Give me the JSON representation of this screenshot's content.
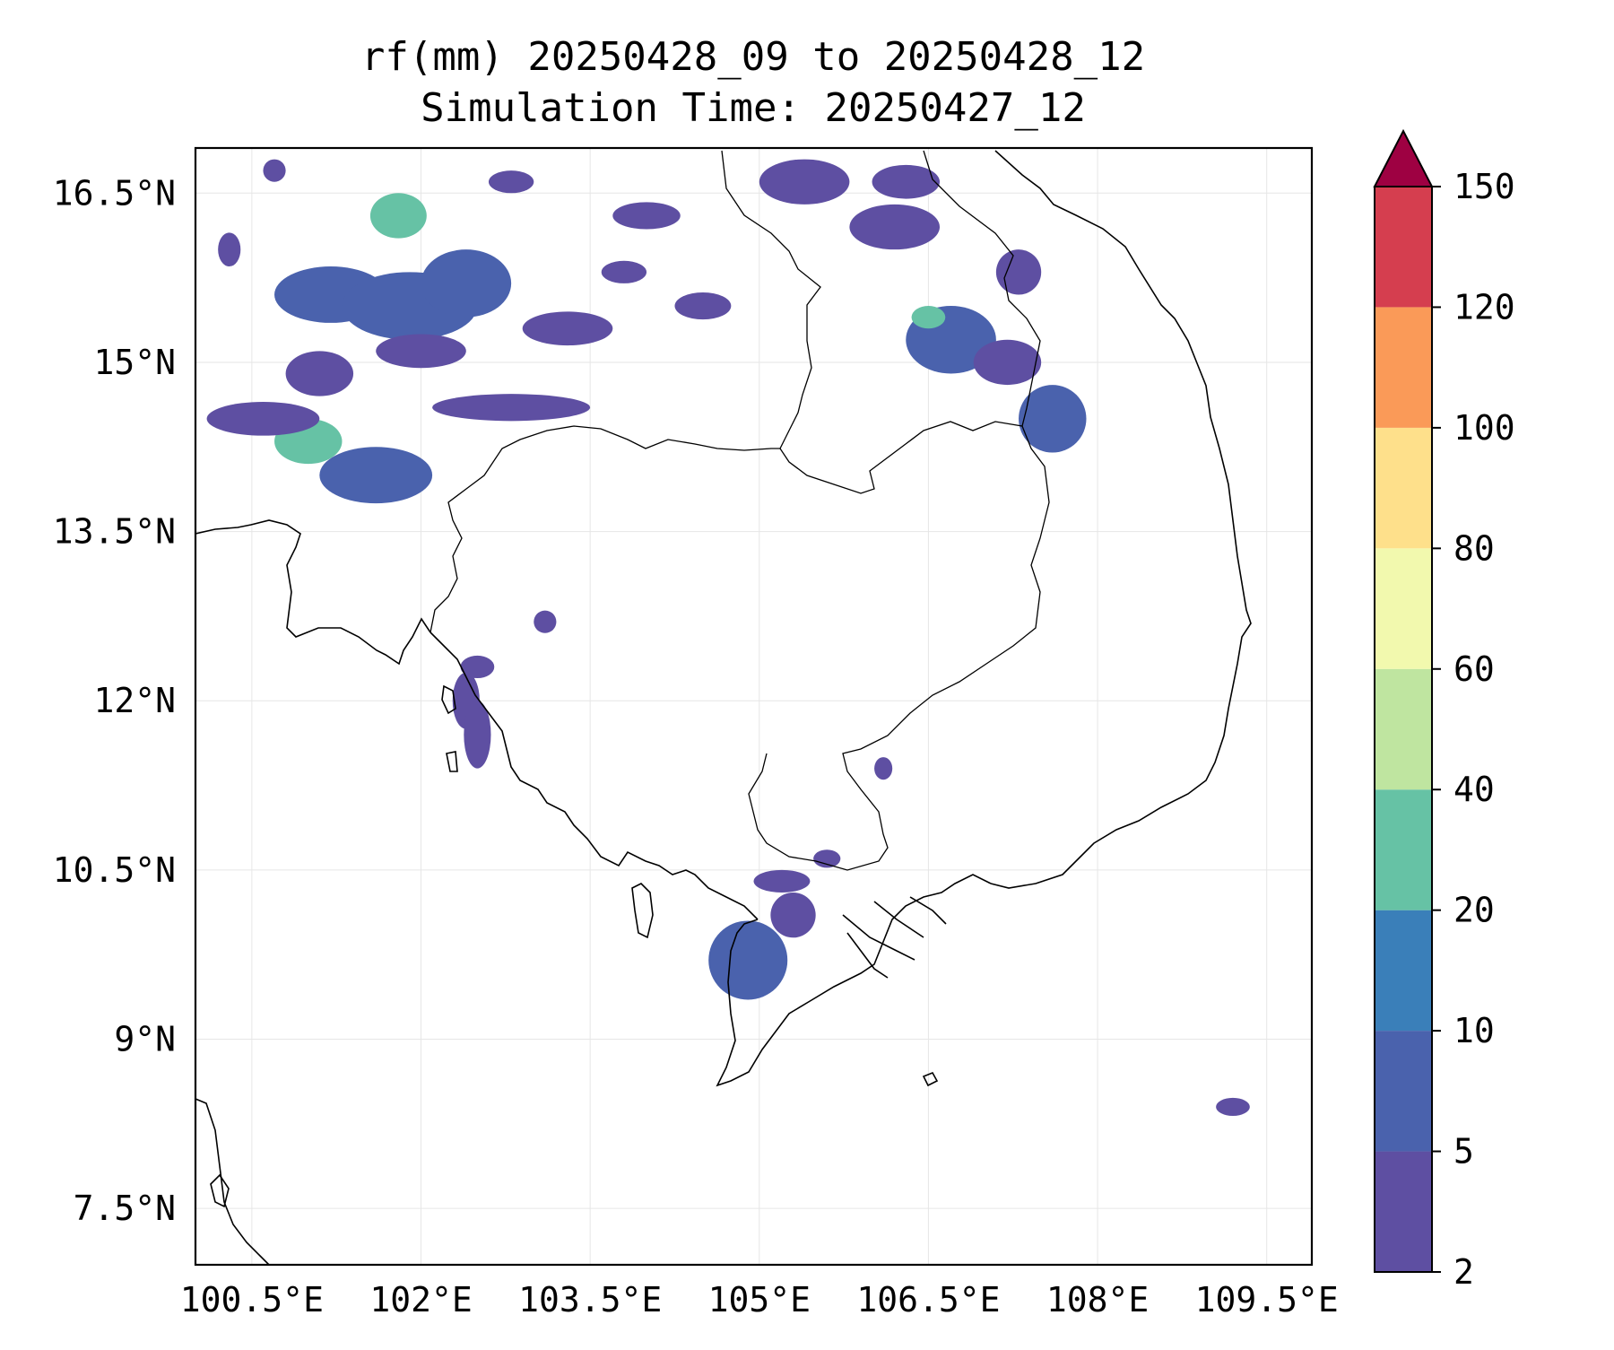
{
  "title": {
    "line1": "rf(mm) 20250428_09 to 20250428_12",
    "line2": "Simulation Time: 20250427_12"
  },
  "map": {
    "lon_range": [
      100.0,
      109.9
    ],
    "lat_range": [
      7.0,
      16.9
    ],
    "lon_ticks": [
      {
        "value": 100.5,
        "label": "100.5°E"
      },
      {
        "value": 102.0,
        "label": "102°E"
      },
      {
        "value": 103.5,
        "label": "103.5°E"
      },
      {
        "value": 105.0,
        "label": "105°E"
      },
      {
        "value": 106.5,
        "label": "106.5°E"
      },
      {
        "value": 108.0,
        "label": "108°E"
      },
      {
        "value": 109.5,
        "label": "109.5°E"
      }
    ],
    "lat_ticks": [
      {
        "value": 16.5,
        "label": "16.5°N"
      },
      {
        "value": 15.0,
        "label": "15°N"
      },
      {
        "value": 13.5,
        "label": "13.5°N"
      },
      {
        "value": 12.0,
        "label": "12°N"
      },
      {
        "value": 10.5,
        "label": "10.5°N"
      },
      {
        "value": 9.0,
        "label": "9°N"
      },
      {
        "value": 7.5,
        "label": "7.5°N"
      }
    ],
    "grid": true
  },
  "colorbar": {
    "extend": "max",
    "extend_color": "#9e0142",
    "levels": [
      {
        "label": "2",
        "color": "#5e4fa2"
      },
      {
        "label": "5",
        "color": "#4a62ad"
      },
      {
        "label": "10",
        "color": "#3a7fb9"
      },
      {
        "label": "20",
        "color": "#66c2a5"
      },
      {
        "label": "40",
        "color": "#bfe5a0"
      },
      {
        "label": "60",
        "color": "#f2f9ae"
      },
      {
        "label": "80",
        "color": "#fee08b"
      },
      {
        "label": "100",
        "color": "#fa9a58"
      },
      {
        "label": "120",
        "color": "#d53e4f"
      },
      {
        "label": "150",
        "color": ""
      }
    ]
  },
  "rain_cells": [
    {
      "lon": 101.2,
      "lat": 15.6,
      "rx": 0.5,
      "ry": 0.25,
      "level": 1
    },
    {
      "lon": 101.9,
      "lat": 15.5,
      "rx": 0.6,
      "ry": 0.3,
      "level": 1
    },
    {
      "lon": 102.4,
      "lat": 15.7,
      "rx": 0.4,
      "ry": 0.3,
      "level": 1
    },
    {
      "lon": 101.8,
      "lat": 16.3,
      "rx": 0.25,
      "ry": 0.2,
      "level": 3
    },
    {
      "lon": 101.1,
      "lat": 14.9,
      "rx": 0.3,
      "ry": 0.2,
      "level": 0
    },
    {
      "lon": 101.0,
      "lat": 14.3,
      "rx": 0.3,
      "ry": 0.2,
      "level": 3
    },
    {
      "lon": 101.6,
      "lat": 14.0,
      "rx": 0.5,
      "ry": 0.25,
      "level": 1
    },
    {
      "lon": 100.6,
      "lat": 14.5,
      "rx": 0.5,
      "ry": 0.15,
      "level": 0
    },
    {
      "lon": 102.8,
      "lat": 14.6,
      "rx": 0.7,
      "ry": 0.12,
      "level": 0
    },
    {
      "lon": 102.0,
      "lat": 15.1,
      "rx": 0.4,
      "ry": 0.15,
      "level": 0
    },
    {
      "lon": 103.3,
      "lat": 15.3,
      "rx": 0.4,
      "ry": 0.15,
      "level": 0
    },
    {
      "lon": 104.5,
      "lat": 15.5,
      "rx": 0.25,
      "ry": 0.12,
      "level": 0
    },
    {
      "lon": 104.0,
      "lat": 16.3,
      "rx": 0.3,
      "ry": 0.12,
      "level": 0
    },
    {
      "lon": 105.4,
      "lat": 16.6,
      "rx": 0.4,
      "ry": 0.2,
      "level": 0
    },
    {
      "lon": 106.2,
      "lat": 16.2,
      "rx": 0.4,
      "ry": 0.2,
      "level": 0
    },
    {
      "lon": 106.7,
      "lat": 15.2,
      "rx": 0.4,
      "ry": 0.3,
      "level": 1
    },
    {
      "lon": 106.5,
      "lat": 15.4,
      "rx": 0.15,
      "ry": 0.1,
      "level": 3
    },
    {
      "lon": 107.2,
      "lat": 15.0,
      "rx": 0.3,
      "ry": 0.2,
      "level": 0
    },
    {
      "lon": 107.6,
      "lat": 14.5,
      "rx": 0.3,
      "ry": 0.3,
      "level": 1
    },
    {
      "lon": 106.3,
      "lat": 16.6,
      "rx": 0.3,
      "ry": 0.15,
      "level": 0
    },
    {
      "lon": 107.3,
      "lat": 15.8,
      "rx": 0.2,
      "ry": 0.2,
      "level": 0
    },
    {
      "lon": 102.4,
      "lat": 12.0,
      "rx": 0.12,
      "ry": 0.25,
      "level": 0
    },
    {
      "lon": 102.5,
      "lat": 11.7,
      "rx": 0.12,
      "ry": 0.3,
      "level": 0
    },
    {
      "lon": 102.5,
      "lat": 12.3,
      "rx": 0.15,
      "ry": 0.1,
      "level": 0
    },
    {
      "lon": 103.1,
      "lat": 12.7,
      "rx": 0.1,
      "ry": 0.1,
      "level": 0
    },
    {
      "lon": 104.9,
      "lat": 9.7,
      "rx": 0.35,
      "ry": 0.35,
      "level": 1
    },
    {
      "lon": 105.3,
      "lat": 10.1,
      "rx": 0.2,
      "ry": 0.2,
      "level": 0
    },
    {
      "lon": 105.2,
      "lat": 10.4,
      "rx": 0.25,
      "ry": 0.1,
      "level": 0
    },
    {
      "lon": 105.6,
      "lat": 10.6,
      "rx": 0.12,
      "ry": 0.08,
      "level": 0
    },
    {
      "lon": 106.1,
      "lat": 11.4,
      "rx": 0.08,
      "ry": 0.1,
      "level": 0
    },
    {
      "lon": 109.2,
      "lat": 8.4,
      "rx": 0.15,
      "ry": 0.08,
      "level": 0
    },
    {
      "lon": 100.3,
      "lat": 16.0,
      "rx": 0.1,
      "ry": 0.15,
      "level": 0
    },
    {
      "lon": 100.7,
      "lat": 16.7,
      "rx": 0.1,
      "ry": 0.1,
      "level": 0
    },
    {
      "lon": 102.8,
      "lat": 16.6,
      "rx": 0.2,
      "ry": 0.1,
      "level": 0
    },
    {
      "lon": 103.8,
      "lat": 15.8,
      "rx": 0.2,
      "ry": 0.1,
      "level": 0
    }
  ]
}
